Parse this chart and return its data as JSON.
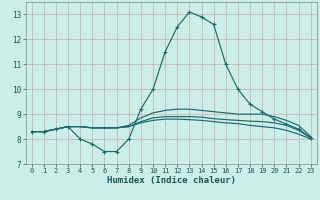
{
  "title": "",
  "xlabel": "Humidex (Indice chaleur)",
  "x": [
    0,
    1,
    2,
    3,
    4,
    5,
    6,
    7,
    8,
    9,
    10,
    11,
    12,
    13,
    14,
    15,
    16,
    17,
    18,
    19,
    20,
    21,
    22,
    23
  ],
  "lines": [
    [
      8.3,
      8.3,
      8.4,
      8.5,
      8.0,
      7.8,
      7.5,
      7.5,
      8.0,
      9.2,
      10.0,
      11.5,
      12.5,
      13.1,
      12.9,
      12.6,
      11.0,
      10.0,
      9.4,
      9.1,
      8.8,
      8.6,
      8.4,
      8.05
    ],
    [
      8.3,
      8.3,
      8.4,
      8.5,
      8.5,
      8.45,
      8.45,
      8.45,
      8.55,
      8.85,
      9.05,
      9.15,
      9.2,
      9.2,
      9.15,
      9.1,
      9.05,
      9.0,
      9.0,
      9.0,
      8.9,
      8.75,
      8.55,
      8.1
    ],
    [
      8.3,
      8.3,
      8.4,
      8.5,
      8.5,
      8.45,
      8.45,
      8.45,
      8.5,
      8.7,
      8.85,
      8.9,
      8.9,
      8.9,
      8.88,
      8.82,
      8.78,
      8.75,
      8.72,
      8.7,
      8.65,
      8.55,
      8.35,
      8.05
    ],
    [
      8.3,
      8.3,
      8.4,
      8.5,
      8.5,
      8.45,
      8.45,
      8.45,
      8.5,
      8.65,
      8.75,
      8.8,
      8.8,
      8.78,
      8.75,
      8.7,
      8.65,
      8.62,
      8.55,
      8.5,
      8.45,
      8.35,
      8.2,
      8.0
    ]
  ],
  "has_markers": [
    true,
    false,
    false,
    false
  ],
  "line_color": "#1a6b6b",
  "bg_color": "#cceee8",
  "grid_major_color": "#c8b8b8",
  "grid_minor_color": "#d8ecec",
  "ylim": [
    7.0,
    13.5
  ],
  "xlim": [
    -0.5,
    23.5
  ],
  "yticks": [
    7,
    8,
    9,
    10,
    11,
    12,
    13
  ],
  "xticks": [
    0,
    1,
    2,
    3,
    4,
    5,
    6,
    7,
    8,
    9,
    10,
    11,
    12,
    13,
    14,
    15,
    16,
    17,
    18,
    19,
    20,
    21,
    22,
    23
  ],
  "xlabel_fontsize": 6.5,
  "tick_fontsize": 5.5
}
